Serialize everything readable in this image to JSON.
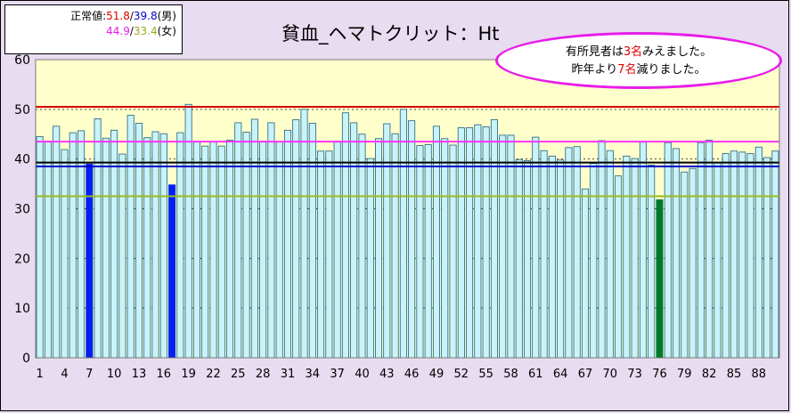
{
  "title": "貧血_ヘマトクリット：Ht",
  "normal_box": {
    "label": "正常値:",
    "male_hi": "51.8",
    "sep1": "/",
    "male_lo": "39.8",
    "male_tag": "(男)",
    "female_hi": "44.9",
    "sep2": "/",
    "female_lo": "33.4",
    "female_tag": "(女)"
  },
  "callout": {
    "l1_a": "有所見者は",
    "l1_num": "3名",
    "l1_b": "みえました。",
    "l2_a": "昨年より",
    "l2_num": "7名",
    "l2_b": "減りました。"
  },
  "chart_data": {
    "type": "bar",
    "ylim": [
      0,
      60
    ],
    "yticks": [
      0,
      10,
      20,
      30,
      40,
      50,
      60
    ],
    "xtick_labels": [
      1,
      4,
      7,
      10,
      13,
      16,
      19,
      22,
      25,
      28,
      31,
      34,
      37,
      40,
      43,
      46,
      49,
      52,
      55,
      58,
      61,
      64,
      67,
      70,
      73,
      76,
      79,
      82,
      85,
      88
    ],
    "x_max": 90,
    "reference_lines": [
      {
        "value": 50.5,
        "color": "#d00000"
      },
      {
        "value": 43.5,
        "color": "#ff33ff"
      },
      {
        "value": 39.3,
        "color": "#000000"
      },
      {
        "value": 38.5,
        "color": "#0000cc"
      },
      {
        "value": 32.5,
        "color": "#99bb22"
      }
    ],
    "values": [
      44.5,
      43.6,
      46.6,
      41.9,
      45.3,
      45.7,
      39.0,
      48.1,
      44.2,
      45.8,
      41.0,
      48.8,
      47.2,
      44.3,
      45.5,
      45.1,
      34.8,
      45.3,
      51.0,
      43.6,
      42.6,
      43.4,
      42.6,
      43.8,
      47.3,
      45.4,
      48.0,
      43.6,
      47.3,
      43.5,
      45.8,
      47.9,
      50.0,
      47.2,
      41.6,
      41.6,
      43.6,
      49.3,
      47.3,
      45.0,
      40.1,
      44.1,
      47.1,
      45.1,
      50.0,
      47.7,
      42.7,
      42.9,
      46.6,
      44.1,
      42.8,
      46.3,
      46.3,
      46.9,
      46.5,
      47.9,
      44.8,
      44.8,
      39.9,
      39.7,
      44.4,
      41.7,
      40.6,
      39.8,
      42.3,
      42.5,
      34.0,
      39.1,
      43.7,
      41.7,
      36.6,
      40.6,
      40.1,
      43.4,
      38.8,
      31.8,
      43.3,
      42.1,
      37.4,
      38.1,
      43.3,
      43.8,
      39.2,
      41.1,
      41.6,
      41.4,
      41.1,
      42.4,
      40.3,
      41.6
    ],
    "highlights": {
      "7": "#0022ee",
      "17": "#0022ee",
      "76": "#007a2e"
    }
  },
  "colors": {
    "bar_fill": "#c9f3fb",
    "bar_stroke": "#1f5f7c",
    "plot_bg": "#ffffcc",
    "page_bg": "#e8dcf0"
  }
}
